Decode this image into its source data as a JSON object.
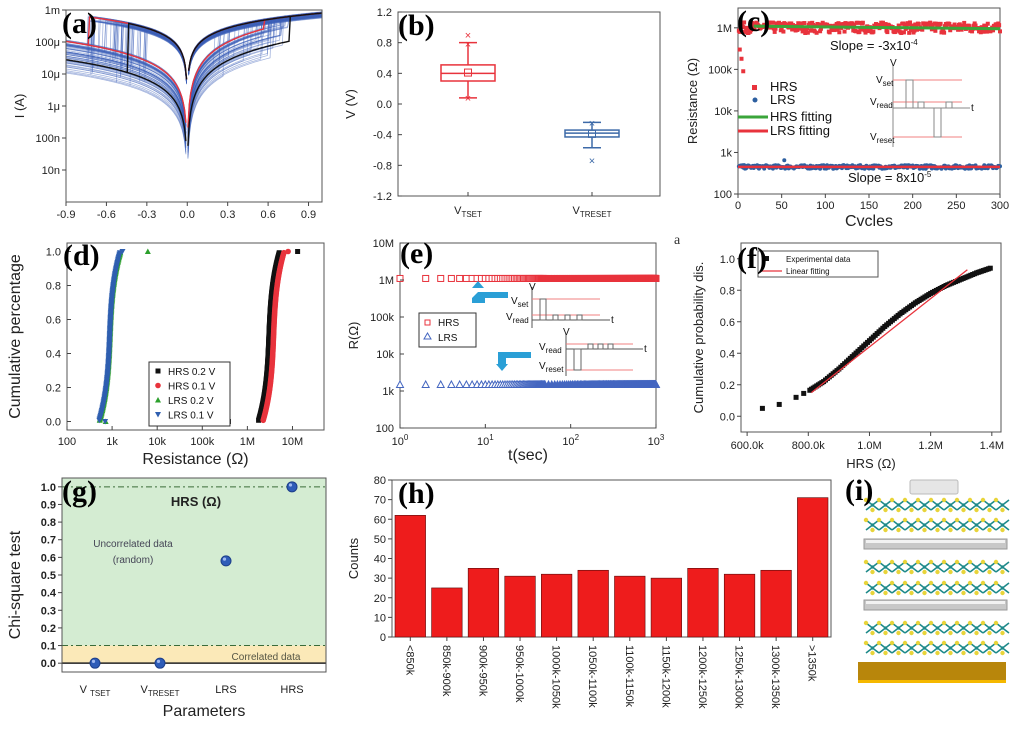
{
  "figure": {
    "panel_labels": [
      "(a)",
      "(b)",
      "(c)",
      "(d)",
      "(e)",
      "(f)",
      "(g)",
      "(h)",
      "(i)"
    ],
    "stray_mark_f": "a"
  },
  "chart_data": [
    {
      "id": "a",
      "type": "line",
      "title": "",
      "xlabel": "",
      "ylabel": "I (A)",
      "xlim": [
        -0.9,
        1.0
      ],
      "ylim_log": [
        1e-09,
        0.001
      ],
      "xticks": [
        "-0.9",
        "-0.6",
        "-0.3",
        "0.0",
        "0.3",
        "0.6",
        "0.9"
      ],
      "xtick_values": [
        -0.9,
        -0.6,
        -0.3,
        0.0,
        0.3,
        0.6,
        0.9
      ],
      "yticks": [
        "10n",
        "100n",
        "1μ",
        "10μ",
        "100μ",
        "1m"
      ],
      "ytick_values": [
        1e-08,
        1e-07,
        1e-06,
        1e-05,
        0.0001,
        0.001
      ],
      "series": [
        {
          "name": "cycles (many)",
          "color": "#3b5fb8",
          "description": "bipolar I-V sweeps, set ~0.2–0.75 V, reset ~-0.3 to -0.75 V"
        },
        {
          "name": "red highlighted cycle",
          "color": "#e8333c",
          "set_v": 0.57,
          "reset_v": -0.73
        },
        {
          "name": "black highlighted cycle",
          "color": "#111111",
          "set_v": 0.76,
          "reset_v": -0.44
        }
      ]
    },
    {
      "id": "b",
      "type": "box",
      "ylabel": "V (V)",
      "ylim": [
        -1.2,
        1.2
      ],
      "yticks": [
        "-1.2",
        "-0.8",
        "-0.4",
        "0.0",
        "0.4",
        "0.8",
        "1.2"
      ],
      "categories": [
        "V_TSET",
        "V_TRESET"
      ],
      "category_main": [
        "V",
        "V"
      ],
      "category_sub": [
        "TSET",
        "TRESET"
      ],
      "boxes": [
        {
          "name": "V_TSET",
          "color": "#e8333c",
          "min": 0.08,
          "q1": 0.3,
          "median": 0.4,
          "mean": 0.41,
          "q3": 0.51,
          "max": 0.8,
          "outliers": [
            0.9,
            0.78,
            0.08
          ]
        },
        {
          "name": "V_TRESET",
          "color": "#3d6aa8",
          "min": -0.57,
          "q1": -0.43,
          "median": -0.38,
          "mean": -0.39,
          "q3": -0.34,
          "max": -0.24,
          "outliers": [
            -0.74,
            -0.25
          ]
        }
      ]
    },
    {
      "id": "c",
      "type": "scatter",
      "xlabel": "Cvcles",
      "ylabel": "Resistance (Ω)",
      "xlim": [
        0,
        300
      ],
      "ylim_log": [
        100,
        3000000
      ],
      "xticks": [
        "0",
        "50",
        "100",
        "150",
        "200",
        "250",
        "300"
      ],
      "xtick_values": [
        0,
        50,
        100,
        150,
        200,
        250,
        300
      ],
      "yticks": [
        "100",
        "1k",
        "10k",
        "100k",
        "1M"
      ],
      "ytick_values": [
        100,
        1000,
        10000,
        100000,
        1000000
      ],
      "series": [
        {
          "name": "HRS",
          "color": "#e8333c",
          "marker": "square",
          "typical": 1000000,
          "early_values": [
            300000,
            180000,
            90000
          ]
        },
        {
          "name": "LRS",
          "color": "#2d5fa0",
          "marker": "circle",
          "typical": 450,
          "spike": {
            "x": 53,
            "y": 650
          }
        },
        {
          "name": "HRS fitting",
          "color": "#3aa53a",
          "marker": "line",
          "from": 1100000,
          "to": 950000
        },
        {
          "name": "LRS fitting",
          "color": "#e8333c",
          "marker": "line",
          "from": 450,
          "to": 450
        }
      ],
      "annotations": [
        "Slope = -3x10",
        "-4",
        "Slope = 8x10",
        "-5"
      ],
      "inset": {
        "axis_v": "V",
        "axis_t": "t",
        "labels": [
          "V",
          "set",
          "V",
          "read",
          "V",
          "reset"
        ]
      }
    },
    {
      "id": "d",
      "type": "scatter",
      "xlabel": "Resistance (Ω)",
      "ylabel": "Cumulative percentage",
      "xlim_log": [
        100,
        50000000
      ],
      "ylim": [
        -0.05,
        1.05
      ],
      "xticks": [
        "100",
        "1k",
        "10k",
        "100k",
        "1M",
        "10M"
      ],
      "xtick_values": [
        100,
        1000,
        10000,
        100000,
        1000000,
        10000000
      ],
      "yticks": [
        "0.0",
        "0.2",
        "0.4",
        "0.6",
        "0.8",
        "1.0"
      ],
      "ytick_values": [
        0,
        0.2,
        0.4,
        0.6,
        0.8,
        1.0
      ],
      "legend": "center-bottom",
      "series": [
        {
          "name": "HRS 0.2 V",
          "color": "#111111",
          "marker": "square",
          "median": 3000000,
          "lo": 380000,
          "hi": 13000000
        },
        {
          "name": "HRS 0.1 V",
          "color": "#e8333c",
          "marker": "circle",
          "median": 3800000,
          "lo": 330000,
          "hi": 8000000
        },
        {
          "name": "LRS 0.2 V",
          "color": "#2ca02c",
          "marker": "triangle-up",
          "median": 900,
          "lo": 720,
          "hi": 6200
        },
        {
          "name": "LRS 0.1 V",
          "color": "#2f5fb0",
          "marker": "triangle-down",
          "median": 880,
          "lo": 700,
          "hi": 1700
        }
      ]
    },
    {
      "id": "e",
      "type": "scatter",
      "xlabel": "t(sec)",
      "ylabel": "R(Ω)",
      "xlim_log": [
        1,
        1000
      ],
      "ylim_log": [
        100,
        10000000
      ],
      "xticks": [
        "10",
        "10",
        "10",
        "10"
      ],
      "xtick_exp": [
        "0",
        "1",
        "2",
        "3"
      ],
      "xtick_values": [
        1,
        10,
        100,
        1000
      ],
      "yticks": [
        "100",
        "1k",
        "10k",
        "100k",
        "1M",
        "10M"
      ],
      "ytick_values": [
        100,
        1000,
        10000,
        100000,
        1000000,
        10000000
      ],
      "legend": "left-center",
      "series": [
        {
          "name": "HRS",
          "color": "#e8333c",
          "marker": "open-square",
          "value": 1100000
        },
        {
          "name": "LRS",
          "color": "#4466c0",
          "marker": "open-triangle",
          "value": 1500
        }
      ],
      "inset_labels": [
        "V",
        "V",
        "set",
        "V",
        "read",
        "t",
        "V",
        "V",
        "read",
        "V",
        "reset",
        "t"
      ]
    },
    {
      "id": "f",
      "type": "scatter",
      "xlabel": "HRS (Ω)",
      "ylabel": "Cumulative probability dis.",
      "xlim": [
        580000,
        1430000
      ],
      "ylim": [
        -0.1,
        1.1
      ],
      "xticks": [
        "600.0k",
        "800.0k",
        "1.0M",
        "1.2M",
        "1.4M"
      ],
      "xtick_values": [
        600000,
        800000,
        1000000,
        1200000,
        1400000
      ],
      "yticks": [
        "0.0",
        "0.2",
        "0.4",
        "0.6",
        "0.8",
        "1.0"
      ],
      "ytick_values": [
        0,
        0.2,
        0.4,
        0.6,
        0.8,
        1.0
      ],
      "legend": "top-left",
      "series": [
        {
          "name": "Experimental data",
          "color": "#111111",
          "marker": "square",
          "x": [
            650000,
            705000,
            760000,
            785000,
            805000,
            850000,
            900000,
            950000,
            1000000,
            1050000,
            1100000,
            1150000,
            1200000,
            1250000,
            1300000,
            1350000,
            1395000
          ],
          "y": [
            0.05,
            0.075,
            0.12,
            0.145,
            0.165,
            0.22,
            0.3,
            0.39,
            0.48,
            0.57,
            0.65,
            0.72,
            0.78,
            0.83,
            0.87,
            0.91,
            0.94
          ]
        },
        {
          "name": "Linear fitting",
          "color": "#e8333c",
          "marker": "line",
          "x": [
            810000,
            1320000
          ],
          "y": [
            0.15,
            0.93
          ]
        }
      ]
    },
    {
      "id": "g",
      "type": "scatter",
      "title": "HRS (Ω)",
      "xlabel": "Parameters",
      "ylabel": "Chi-square test",
      "ylim": [
        -0.05,
        1.05
      ],
      "yticks": [
        "0.0",
        "0.1",
        "0.2",
        "0.3",
        "0.4",
        "0.5",
        "0.6",
        "0.7",
        "0.8",
        "0.9",
        "1.0"
      ],
      "ytick_values": [
        0,
        0.1,
        0.2,
        0.3,
        0.4,
        0.5,
        0.6,
        0.7,
        0.8,
        0.9,
        1.0
      ],
      "categories": [
        "V TSET",
        "VTRESET",
        "LRS",
        "HRS"
      ],
      "category_main": [
        "V ",
        "V",
        "LRS",
        "HRS"
      ],
      "category_sub": [
        "TSET",
        "TRESET",
        "",
        ""
      ],
      "values": [
        0.0,
        0.0,
        0.58,
        1.0
      ],
      "regions": [
        {
          "label": "Uncorrelated data",
          "label2": "(random)",
          "from": 0.1,
          "to": 1.0,
          "color": "#d4ecd2"
        },
        {
          "label": "Correlated data",
          "from": 0.0,
          "to": 0.1,
          "color": "#fbe9b8"
        }
      ],
      "threshold_lines": [
        0.1,
        1.0
      ],
      "point_color": "#2e5cb8"
    },
    {
      "id": "h",
      "type": "bar",
      "xlabel": "",
      "ylabel": "Counts",
      "ylim": [
        0,
        80
      ],
      "yticks": [
        "0",
        "10",
        "20",
        "30",
        "40",
        "50",
        "60",
        "70",
        "80"
      ],
      "ytick_values": [
        0,
        10,
        20,
        30,
        40,
        50,
        60,
        70,
        80
      ],
      "categories": [
        "<850k",
        "850k-900k",
        "900k-950k",
        "950k-1000k",
        "1000k-1050k",
        "1050k-1100k",
        "1100k-1150k",
        "1150k-1200k",
        "1200k-1250k",
        "1250k-1300k",
        "1300k-1350k",
        ">1350k"
      ],
      "values": [
        62,
        25,
        35,
        31,
        32,
        34,
        31,
        30,
        35,
        32,
        34,
        71
      ],
      "color": "#ee1c1c"
    }
  ],
  "schematic_i": {
    "description": "layered device stack: top electrode, MoS2-like layers separated by gray layers, gold bottom electrode",
    "layer_groups": 3,
    "rows_per_group": 2,
    "colors": {
      "atom_yellow": "#e8d43a",
      "atom_teal": "#1e8a8a",
      "spacer": "#c8c8c8",
      "bottom": "#b8860b",
      "top": "#e6e6e6"
    }
  }
}
